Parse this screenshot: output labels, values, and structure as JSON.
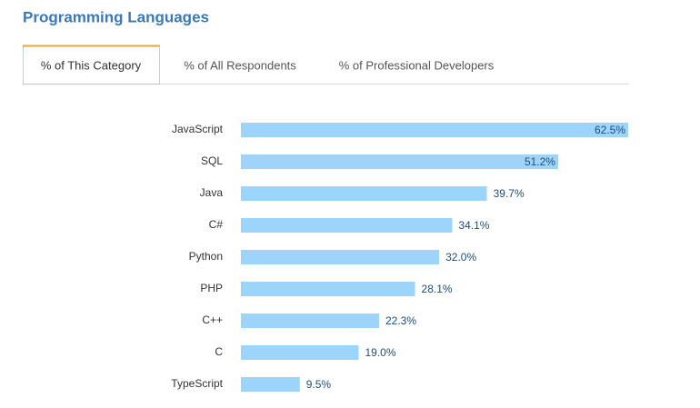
{
  "header": {
    "title": "Programming Languages",
    "tabs": [
      "% of This Category",
      "% of All Respondents",
      "% of Professional Developers"
    ]
  },
  "chart_data": {
    "type": "bar",
    "orientation": "horizontal",
    "color": "#9dd4fb",
    "categories": [
      "JavaScript",
      "SQL",
      "Java",
      "C#",
      "Python",
      "PHP",
      "C++",
      "C",
      "TypeScript"
    ],
    "values": [
      62.5,
      51.2,
      39.7,
      34.1,
      32.0,
      28.1,
      22.3,
      19.0,
      9.5
    ],
    "value_labels": [
      "62.5%",
      "51.2%",
      "39.7%",
      "34.1%",
      "32.0%",
      "28.1%",
      "22.3%",
      "19.0%",
      "9.5%"
    ]
  }
}
